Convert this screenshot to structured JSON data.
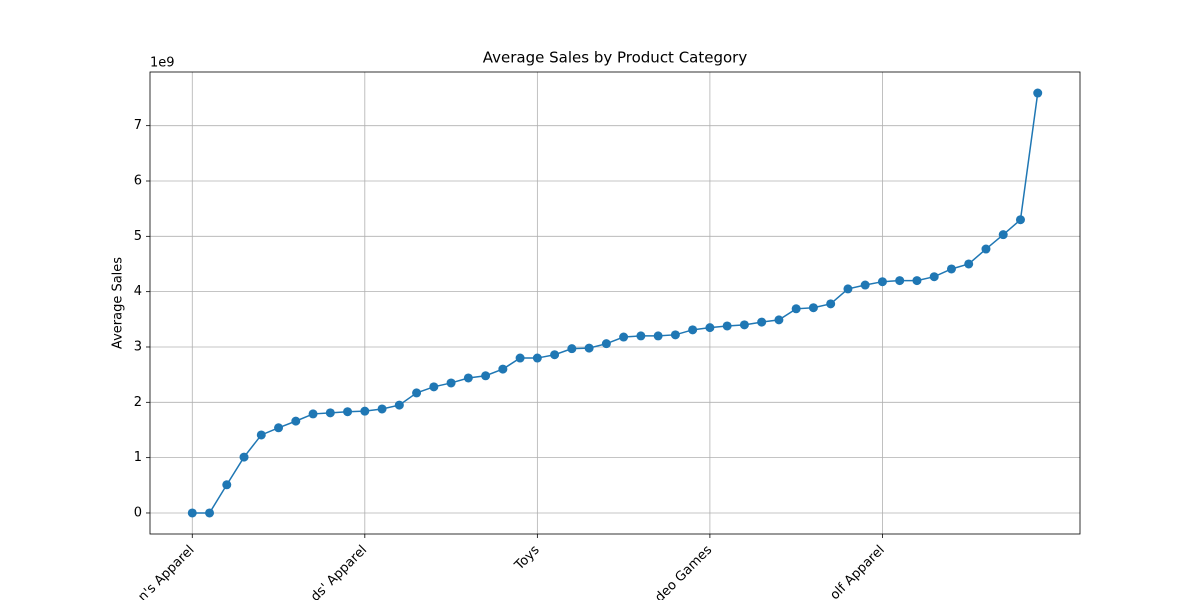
{
  "chart_data": {
    "type": "line",
    "title": "Average Sales by Product Category",
    "ylabel": "Average Sales",
    "y_offset_label": "1e9",
    "categories": [
      "n's Apparel",
      null,
      null,
      null,
      null,
      null,
      null,
      null,
      null,
      null,
      "ds' Apparel",
      null,
      null,
      null,
      null,
      null,
      null,
      null,
      null,
      null,
      "Toys",
      null,
      null,
      null,
      null,
      null,
      null,
      null,
      null,
      null,
      "deo Games",
      null,
      null,
      null,
      null,
      null,
      null,
      null,
      null,
      null,
      "olf Apparel",
      null,
      null,
      null,
      null,
      null,
      null,
      null,
      null,
      null
    ],
    "values": [
      0,
      0,
      0.51,
      1.01,
      1.41,
      1.54,
      1.66,
      1.79,
      1.81,
      1.83,
      1.84,
      1.88,
      1.95,
      2.17,
      2.28,
      2.35,
      2.44,
      2.48,
      2.6,
      2.8,
      2.8,
      2.86,
      2.97,
      2.98,
      3.06,
      3.18,
      3.2,
      3.2,
      3.22,
      3.31,
      3.35,
      3.38,
      3.4,
      3.45,
      3.49,
      3.69,
      3.71,
      3.78,
      4.05,
      4.12,
      4.18,
      4.2,
      4.2,
      4.27,
      4.41,
      4.5,
      4.77,
      5.03,
      5.3,
      7.59
    ],
    "color": "#1f77b4",
    "ylim": [
      -0.38,
      7.97
    ],
    "yticks": [
      0,
      1,
      2,
      3,
      4,
      5,
      6,
      7
    ],
    "grid": true
  }
}
